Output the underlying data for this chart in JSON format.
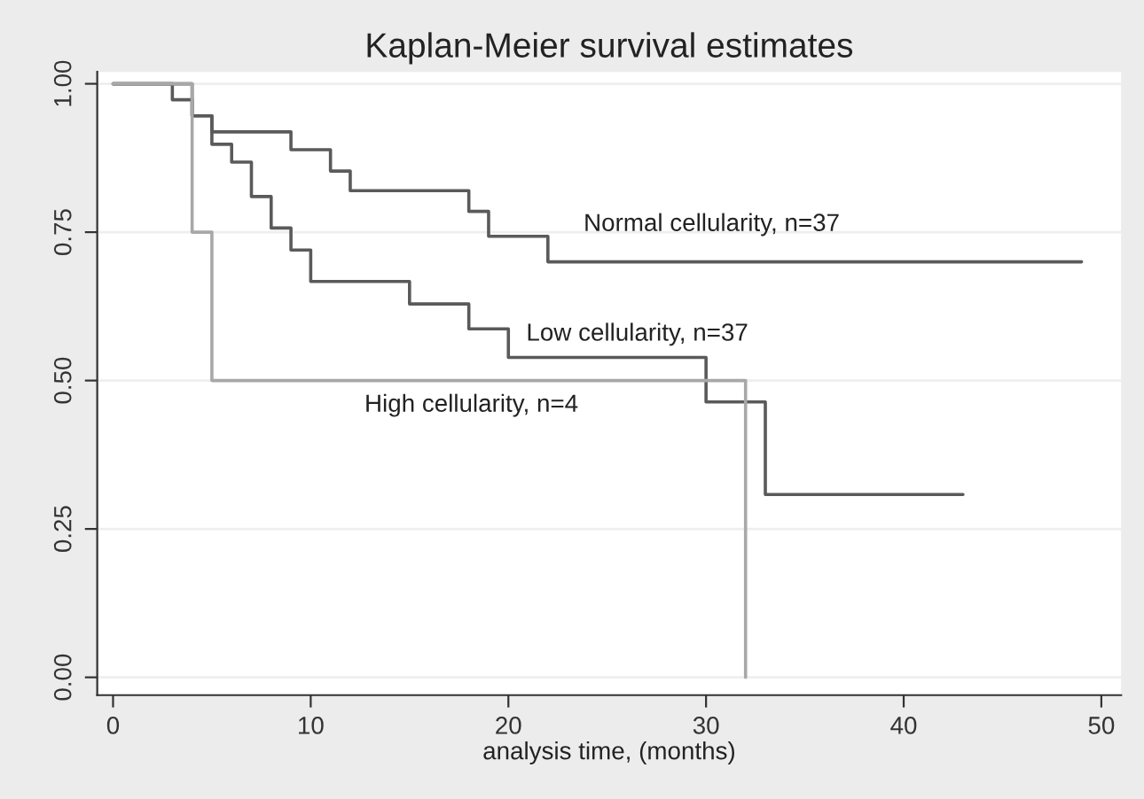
{
  "chart_data": {
    "type": "step",
    "title": "Kaplan-Meier survival estimates",
    "xlabel": "analysis time, (months)",
    "series": [
      {
        "name": "Normal cellularity, n=37",
        "color": "#5a5a5a",
        "x": [
          0,
          4,
          5,
          9,
          11,
          12,
          18,
          19,
          22,
          49
        ],
        "values": [
          1.0,
          0.946,
          0.919,
          0.889,
          0.853,
          0.82,
          0.785,
          0.743,
          0.7,
          0.7
        ]
      },
      {
        "name": "Low cellularity, n=37",
        "color": "#5a5a5a",
        "x": [
          0,
          3,
          4,
          5,
          6,
          7,
          8,
          9,
          10,
          15,
          18,
          20,
          30,
          33,
          43
        ],
        "values": [
          1.0,
          0.973,
          0.946,
          0.898,
          0.868,
          0.81,
          0.757,
          0.72,
          0.667,
          0.629,
          0.587,
          0.539,
          0.464,
          0.308,
          0.308
        ]
      },
      {
        "name": "High cellularity, n=4",
        "color": "#a8a8a8",
        "x": [
          0,
          4,
          5,
          32,
          32
        ],
        "values": [
          1.0,
          0.75,
          0.5,
          0.5,
          0.0
        ]
      }
    ],
    "xlim": [
      -0.8,
      51
    ],
    "ylim": [
      -0.03,
      1.02
    ],
    "xticks": [
      0,
      10,
      20,
      30,
      40,
      50
    ],
    "yticks": [
      {
        "value": 0,
        "label": "0.00"
      },
      {
        "value": 0.25,
        "label": "0.25"
      },
      {
        "value": 0.5,
        "label": "0.50"
      },
      {
        "value": 0.75,
        "label": "0.75"
      },
      {
        "value": 1,
        "label": "1.00"
      }
    ],
    "grid": "y",
    "line_style": "solid"
  }
}
